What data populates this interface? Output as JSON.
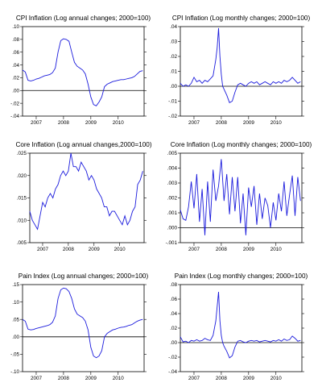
{
  "line_color": "#1a1adc",
  "chart_data": [
    {
      "type": "line",
      "title": "CPI Inflation (Log annual changes; 2000=100)",
      "x_tick_labels": [
        "2007",
        "2008",
        "2009",
        "2010"
      ],
      "y_tick_labels": [
        ".10",
        ".08",
        ".06",
        ".04",
        ".02",
        ".00",
        "-.02",
        "-.04"
      ],
      "ylim": [
        -0.04,
        0.1
      ],
      "xlim": [
        2006.5,
        2010.95
      ],
      "zero_line": true,
      "series": [
        {
          "x": [
            2006.5,
            2006.6,
            2006.7,
            2006.8,
            2006.9,
            2007.0,
            2007.1,
            2007.2,
            2007.3,
            2007.4,
            2007.5,
            2007.6,
            2007.7,
            2007.8,
            2007.9,
            2008.0,
            2008.1,
            2008.2,
            2008.3,
            2008.4,
            2008.5,
            2008.6,
            2008.7,
            2008.8,
            2008.9,
            2009.0,
            2009.1,
            2009.2,
            2009.3,
            2009.4,
            2009.5,
            2009.6,
            2009.7,
            2009.8,
            2009.9,
            2010.0,
            2010.1,
            2010.2,
            2010.3,
            2010.4,
            2010.5,
            2010.6,
            2010.7,
            2010.8,
            2010.9
          ],
          "values": [
            0.032,
            0.029,
            0.016,
            0.015,
            0.016,
            0.018,
            0.019,
            0.021,
            0.023,
            0.024,
            0.025,
            0.028,
            0.035,
            0.06,
            0.078,
            0.081,
            0.08,
            0.077,
            0.06,
            0.044,
            0.038,
            0.035,
            0.032,
            0.026,
            0.01,
            -0.01,
            -0.022,
            -0.024,
            -0.018,
            -0.01,
            0.006,
            0.01,
            0.012,
            0.014,
            0.015,
            0.016,
            0.017,
            0.017,
            0.018,
            0.019,
            0.02,
            0.022,
            0.026,
            0.03,
            0.031
          ]
        }
      ]
    },
    {
      "type": "line",
      "title": "CPI Inflation (Log monthly changes; 2000=100)",
      "x_tick_labels": [
        "2007",
        "2008",
        "2009",
        "2010"
      ],
      "y_tick_labels": [
        ".04",
        ".03",
        ".02",
        ".01",
        ".00",
        "-.01",
        "-.02"
      ],
      "ylim": [
        -0.02,
        0.04
      ],
      "xlim": [
        2006.5,
        2010.95
      ],
      "zero_line": true,
      "series": [
        {
          "x": [
            2006.5,
            2006.6,
            2006.7,
            2006.8,
            2006.9,
            2007.0,
            2007.1,
            2007.2,
            2007.3,
            2007.4,
            2007.5,
            2007.6,
            2007.7,
            2007.8,
            2007.85,
            2007.9,
            2007.95,
            2008.0,
            2008.05,
            2008.1,
            2008.2,
            2008.3,
            2008.4,
            2008.5,
            2008.6,
            2008.7,
            2008.8,
            2008.9,
            2009.0,
            2009.1,
            2009.2,
            2009.3,
            2009.4,
            2009.5,
            2009.6,
            2009.7,
            2009.8,
            2009.9,
            2010.0,
            2010.1,
            2010.2,
            2010.3,
            2010.4,
            2010.5,
            2010.6,
            2010.7,
            2010.8,
            2010.9
          ],
          "values": [
            0.002,
            0.0,
            0.001,
            0.0,
            0.002,
            0.006,
            0.003,
            0.004,
            0.002,
            0.004,
            0.003,
            0.005,
            0.007,
            0.018,
            0.026,
            0.039,
            0.02,
            0.008,
            0.0,
            -0.002,
            -0.006,
            -0.011,
            -0.01,
            -0.004,
            0.001,
            0.002,
            0.001,
            0.0,
            0.002,
            0.003,
            0.002,
            0.003,
            0.001,
            0.002,
            0.003,
            0.002,
            0.001,
            0.003,
            0.002,
            0.003,
            0.002,
            0.004,
            0.003,
            0.004,
            0.006,
            0.004,
            0.002,
            0.003
          ]
        }
      ]
    },
    {
      "type": "line",
      "title": "Core Inflation (Log annual changes,2000=100)",
      "x_tick_labels": [
        "2007",
        "2008",
        "2009",
        "2010"
      ],
      "y_tick_labels": [
        ".025",
        ".020",
        ".015",
        ".010",
        ".005"
      ],
      "ylim": [
        0.005,
        0.025
      ],
      "xlim": [
        2006.5,
        2010.95
      ],
      "zero_line": false,
      "series": [
        {
          "x": [
            2006.5,
            2006.6,
            2006.7,
            2006.8,
            2006.9,
            2007.0,
            2007.1,
            2007.2,
            2007.3,
            2007.4,
            2007.5,
            2007.6,
            2007.7,
            2007.8,
            2007.9,
            2008.0,
            2008.1,
            2008.2,
            2008.3,
            2008.4,
            2008.5,
            2008.6,
            2008.7,
            2008.8,
            2008.9,
            2009.0,
            2009.1,
            2009.2,
            2009.3,
            2009.4,
            2009.5,
            2009.6,
            2009.7,
            2009.8,
            2009.9,
            2010.0,
            2010.1,
            2010.2,
            2010.3,
            2010.4,
            2010.5,
            2010.6,
            2010.7,
            2010.8,
            2010.9
          ],
          "values": [
            0.012,
            0.01,
            0.009,
            0.008,
            0.011,
            0.014,
            0.013,
            0.015,
            0.016,
            0.015,
            0.017,
            0.018,
            0.02,
            0.021,
            0.02,
            0.021,
            0.025,
            0.022,
            0.022,
            0.021,
            0.023,
            0.022,
            0.021,
            0.019,
            0.02,
            0.019,
            0.017,
            0.016,
            0.015,
            0.013,
            0.013,
            0.011,
            0.012,
            0.012,
            0.011,
            0.01,
            0.009,
            0.011,
            0.009,
            0.01,
            0.012,
            0.013,
            0.018,
            0.019,
            0.021
          ]
        }
      ]
    },
    {
      "type": "line",
      "title": "Core Inflation (Log monthly changes; 2000=100)",
      "x_tick_labels": [
        "2007",
        "2008",
        "2009",
        "2010"
      ],
      "y_tick_labels": [
        ".005",
        ".004",
        ".003",
        ".002",
        ".001",
        ".000",
        "-.001"
      ],
      "ylim": [
        -0.001,
        0.005
      ],
      "xlim": [
        2006.5,
        2010.95
      ],
      "zero_line": true,
      "series": [
        {
          "x": [
            2006.5,
            2006.6,
            2006.7,
            2006.8,
            2006.9,
            2007.0,
            2007.1,
            2007.2,
            2007.3,
            2007.4,
            2007.5,
            2007.6,
            2007.7,
            2007.8,
            2007.9,
            2008.0,
            2008.1,
            2008.2,
            2008.3,
            2008.4,
            2008.5,
            2008.6,
            2008.7,
            2008.8,
            2008.9,
            2009.0,
            2009.1,
            2009.2,
            2009.3,
            2009.4,
            2009.5,
            2009.6,
            2009.7,
            2009.8,
            2009.9,
            2010.0,
            2010.1,
            2010.2,
            2010.3,
            2010.4,
            2010.5,
            2010.6,
            2010.7,
            2010.8,
            2010.9
          ],
          "values": [
            0.0012,
            0.0006,
            0.0005,
            0.0014,
            0.0031,
            0.0013,
            0.0036,
            0.0004,
            0.0026,
            -0.0005,
            0.0031,
            0.0004,
            0.0039,
            0.0018,
            0.0028,
            0.0046,
            0.0018,
            0.0036,
            0.0009,
            0.0034,
            0.0011,
            0.0034,
            0.0003,
            0.0023,
            -0.0005,
            0.0027,
            0.0014,
            0.0028,
            0.0002,
            0.0023,
            0.0006,
            0.002,
            0.0015,
            0.0,
            0.0017,
            0.0005,
            0.0023,
            0.0011,
            0.0031,
            0.0008,
            0.0022,
            0.0035,
            0.0008,
            0.0034,
            0.0018
          ]
        }
      ]
    },
    {
      "type": "line",
      "title": "Pain Index (Log annual changes; 2000=100)",
      "x_tick_labels": [
        "2007",
        "2008",
        "2009",
        "2010"
      ],
      "y_tick_labels": [
        ".15",
        ".10",
        ".05",
        ".00",
        "-.05",
        "-.10"
      ],
      "ylim": [
        -0.1,
        0.15
      ],
      "xlim": [
        2006.5,
        2010.95
      ],
      "zero_line": true,
      "series": [
        {
          "x": [
            2006.5,
            2006.6,
            2006.7,
            2006.8,
            2006.9,
            2007.0,
            2007.1,
            2007.2,
            2007.3,
            2007.4,
            2007.5,
            2007.6,
            2007.7,
            2007.8,
            2007.9,
            2008.0,
            2008.1,
            2008.2,
            2008.3,
            2008.4,
            2008.5,
            2008.6,
            2008.7,
            2008.8,
            2008.9,
            2009.0,
            2009.1,
            2009.2,
            2009.3,
            2009.4,
            2009.5,
            2009.6,
            2009.7,
            2009.8,
            2009.9,
            2010.0,
            2010.1,
            2010.2,
            2010.3,
            2010.4,
            2010.5,
            2010.6,
            2010.7,
            2010.8,
            2010.9
          ],
          "values": [
            0.05,
            0.045,
            0.022,
            0.02,
            0.021,
            0.024,
            0.026,
            0.028,
            0.03,
            0.032,
            0.035,
            0.042,
            0.06,
            0.11,
            0.135,
            0.14,
            0.138,
            0.13,
            0.11,
            0.08,
            0.065,
            0.06,
            0.055,
            0.045,
            0.02,
            -0.03,
            -0.055,
            -0.06,
            -0.055,
            -0.04,
            0.0,
            0.01,
            0.015,
            0.02,
            0.022,
            0.025,
            0.027,
            0.028,
            0.03,
            0.033,
            0.035,
            0.04,
            0.045,
            0.048,
            0.05
          ]
        }
      ]
    },
    {
      "type": "line",
      "title": "Pain Index (Log monthly changes; 2000=100)",
      "x_tick_labels": [
        "2007",
        "2008",
        "2009",
        "2010"
      ],
      "y_tick_labels": [
        ".08",
        ".06",
        ".04",
        ".02",
        ".00",
        "-.02",
        "-.04"
      ],
      "ylim": [
        -0.04,
        0.08
      ],
      "xlim": [
        2006.5,
        2010.95
      ],
      "zero_line": true,
      "series": [
        {
          "x": [
            2006.5,
            2006.6,
            2006.7,
            2006.8,
            2006.9,
            2007.0,
            2007.1,
            2007.2,
            2007.3,
            2007.4,
            2007.5,
            2007.6,
            2007.7,
            2007.8,
            2007.85,
            2007.9,
            2007.95,
            2008.0,
            2008.05,
            2008.1,
            2008.2,
            2008.3,
            2008.4,
            2008.5,
            2008.6,
            2008.7,
            2008.8,
            2008.9,
            2009.0,
            2009.1,
            2009.2,
            2009.3,
            2009.4,
            2009.5,
            2009.6,
            2009.7,
            2009.8,
            2009.9,
            2010.0,
            2010.1,
            2010.2,
            2010.3,
            2010.4,
            2010.5,
            2010.6,
            2010.7,
            2010.8,
            2010.9
          ],
          "values": [
            0.008,
            0.001,
            0.002,
            0.0,
            0.003,
            0.002,
            0.004,
            0.002,
            0.003,
            0.006,
            0.004,
            0.003,
            0.01,
            0.03,
            0.05,
            0.07,
            0.03,
            0.01,
            0.0,
            -0.005,
            -0.012,
            -0.021,
            -0.018,
            -0.006,
            0.002,
            0.003,
            0.001,
            0.0,
            0.002,
            0.003,
            0.002,
            0.003,
            0.001,
            0.002,
            0.003,
            0.002,
            0.001,
            0.003,
            0.002,
            0.004,
            0.002,
            0.005,
            0.003,
            0.004,
            0.009,
            0.006,
            0.002,
            0.003
          ]
        }
      ]
    }
  ]
}
